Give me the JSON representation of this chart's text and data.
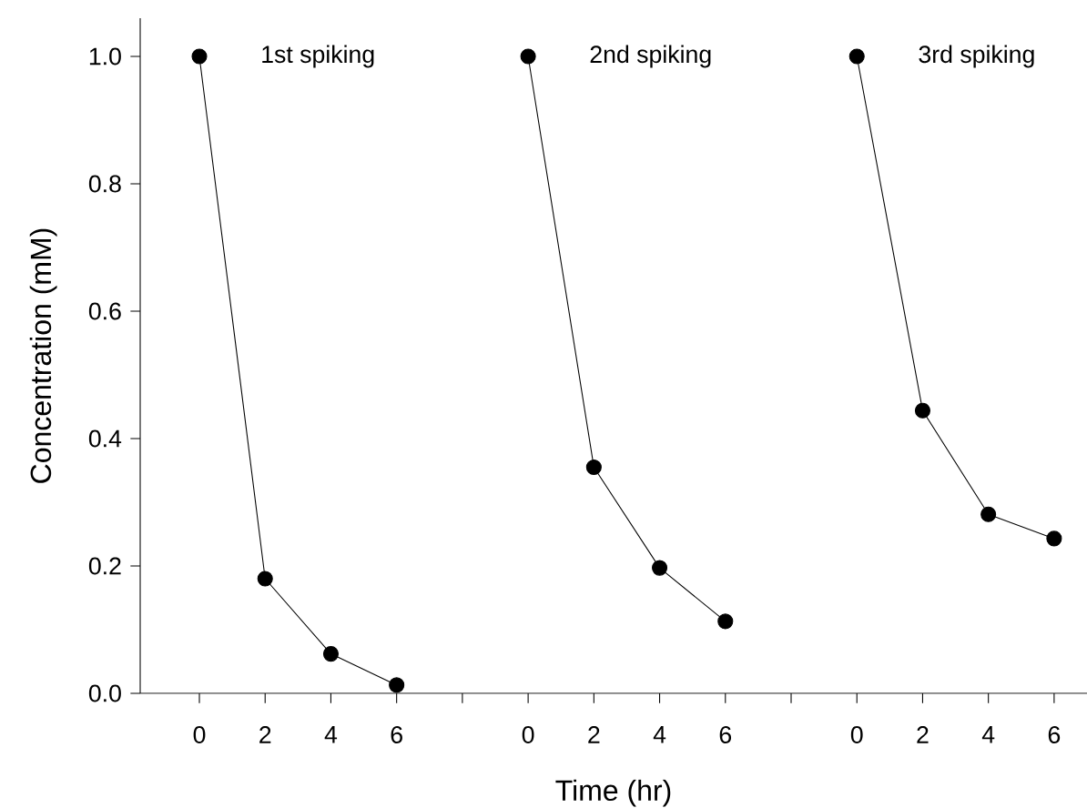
{
  "chart_data": {
    "type": "line",
    "xlabel": "Time (hr)",
    "ylabel": "Concentration (mM)",
    "categories": [
      "0",
      "2",
      "4",
      "6",
      null,
      "0",
      "2",
      "4",
      "6",
      null,
      "0",
      "2",
      "4",
      "6"
    ],
    "series": [
      {
        "name": "1st spiking",
        "color": "#000000",
        "values": [
          1.0,
          0.18,
          0.062,
          0.013,
          null,
          null,
          null,
          null,
          null,
          null,
          null,
          null,
          null,
          null
        ]
      },
      {
        "name": "2nd spiking",
        "color": "#000000",
        "values": [
          null,
          null,
          null,
          null,
          null,
          1.0,
          0.355,
          0.197,
          0.113,
          null,
          null,
          null,
          null,
          null
        ]
      },
      {
        "name": "3rd spiking",
        "color": "#000000",
        "values": [
          null,
          null,
          null,
          null,
          null,
          null,
          null,
          null,
          null,
          null,
          1.0,
          0.444,
          0.281,
          0.243
        ]
      }
    ],
    "ylim": [
      0,
      1.06
    ],
    "yticks": [
      {
        "value": 0,
        "label": "0.0"
      },
      {
        "value": 0.2,
        "label": "0.2"
      },
      {
        "value": 0.4,
        "label": "0.4"
      },
      {
        "value": 0.6,
        "label": "0.6"
      },
      {
        "value": 0.8,
        "label": "0.8"
      },
      {
        "value": 1.0,
        "label": "1.0"
      }
    ],
    "marker": "circle"
  }
}
